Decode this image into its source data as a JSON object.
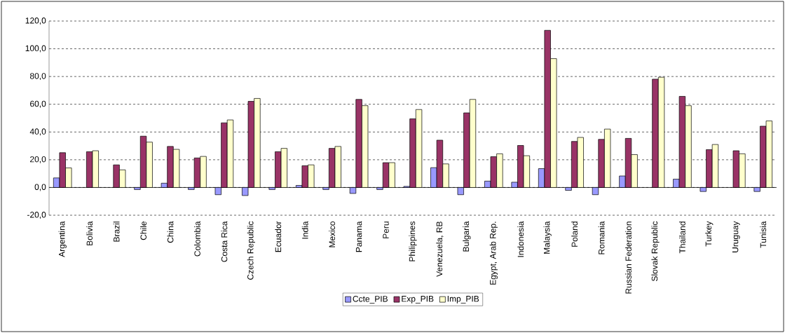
{
  "chart_data": {
    "type": "bar",
    "categories": [
      "Argentina",
      "Bolivia",
      "Brazil",
      "Chile",
      "China",
      "Colombia",
      "Costa Rica",
      "Czech Republic",
      "Ecuador",
      "India",
      "Mexico",
      "Panama",
      "Peru",
      "Philippines",
      "Venezuela, RB",
      "Bulgaria",
      "Egypt, Arab Rep.",
      "Indonesia",
      "Malaysia",
      "Poland",
      "Romania",
      "Russian Federation",
      "Slovak Republic",
      "Thailand",
      "Turkey",
      "Uruguay",
      "Tunisia"
    ],
    "series": [
      {
        "name": "Ccte_PIB",
        "color": "#9999ff",
        "values": [
          6.9,
          null,
          null,
          -1.5,
          3.1,
          -1.5,
          -5.2,
          -5.8,
          -1.5,
          1.5,
          -1.5,
          -4.3,
          -1.5,
          0.8,
          14.3,
          -5.2,
          4.6,
          3.8,
          13.6,
          -2.1,
          -5.2,
          8.3,
          null,
          6.0,
          -2.9,
          null,
          -2.9
        ]
      },
      {
        "name": "Exp_PIB",
        "color": "#993366",
        "values": [
          25.1,
          25.8,
          16.3,
          37.0,
          29.6,
          21.3,
          46.6,
          62.1,
          25.8,
          15.7,
          28.2,
          63.5,
          17.9,
          49.5,
          34.1,
          53.8,
          22.2,
          30.3,
          113.3,
          33.2,
          34.7,
          35.4,
          78.1,
          65.7,
          27.3,
          26.5,
          44.2
        ]
      },
      {
        "name": "Imp_PIB",
        "color": "#ffffcc",
        "values": [
          14.1,
          26.5,
          12.7,
          32.7,
          27.5,
          22.4,
          48.7,
          64.2,
          28.2,
          16.3,
          29.6,
          59.0,
          17.9,
          56.2,
          17.0,
          63.5,
          24.3,
          22.9,
          92.9,
          36.1,
          42.1,
          23.7,
          79.5,
          59.0,
          31.0,
          24.3,
          48.0
        ]
      }
    ],
    "ylim": [
      -20,
      120
    ],
    "yticks": [
      {
        "value": -20,
        "label": "-20,0"
      },
      {
        "value": 0,
        "label": "0,0"
      },
      {
        "value": 20,
        "label": "20,0"
      },
      {
        "value": 40,
        "label": "40,0"
      },
      {
        "value": 60,
        "label": "60,0"
      },
      {
        "value": 80,
        "label": "80,0"
      },
      {
        "value": 100,
        "label": "100,0"
      },
      {
        "value": 120,
        "label": "120,0"
      }
    ],
    "grid": "y",
    "legend": "bottom"
  }
}
